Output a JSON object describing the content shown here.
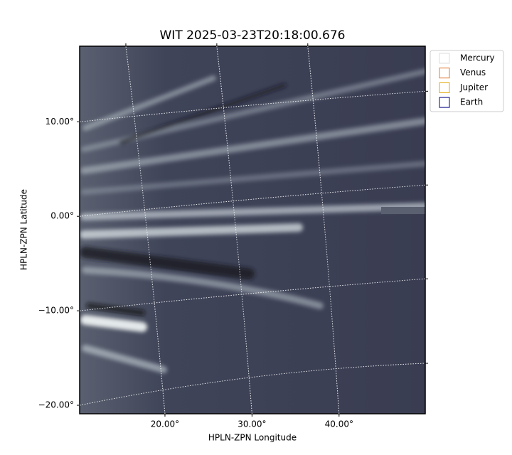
{
  "chart_data": {
    "type": "image",
    "title": "WIT 2025-03-23T20:18:00.676",
    "x_label": "HPLN-ZPN Longitude",
    "y_label": "HPLN-ZPN Latitude",
    "xlim": [
      10.2,
      49.9
    ],
    "ylim": [
      -20.9,
      18
    ],
    "xticks": [
      {
        "value": 20,
        "label": "20.00°"
      },
      {
        "value": 30,
        "label": "30.00°"
      },
      {
        "value": 40,
        "label": "40.00°"
      }
    ],
    "yticks": [
      {
        "value": 10,
        "label": "10.00°"
      },
      {
        "value": 0,
        "label": "0.00°"
      },
      {
        "value": -10,
        "label": "−10.00°"
      },
      {
        "value": -20,
        "label": "−20.00°"
      }
    ],
    "grid": true,
    "legend": [
      {
        "name": "Mercury",
        "color": "#dddddd"
      },
      {
        "name": "Venus",
        "color": "#e07b39"
      },
      {
        "name": "Jupiter",
        "color": "#e0a800"
      },
      {
        "name": "Earth",
        "color": "#000080"
      }
    ]
  }
}
